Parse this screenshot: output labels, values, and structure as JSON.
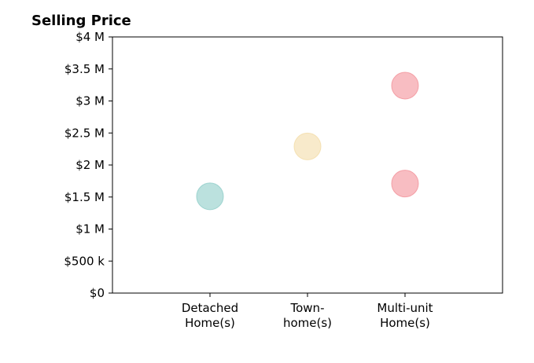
{
  "chart_data": {
    "type": "scatter",
    "title": "Selling Price",
    "xlabel": "",
    "ylabel": "",
    "categories": [
      [
        "Detached",
        "Home(s)"
      ],
      [
        "Town-",
        "home(s)"
      ],
      [
        "Multi-unit",
        "Home(s)"
      ]
    ],
    "x_range": [
      -1,
      3
    ],
    "ylim": [
      0,
      4000000
    ],
    "y_ticks": [
      {
        "value": 0,
        "label": "$0"
      },
      {
        "value": 500000,
        "label": "$500 k"
      },
      {
        "value": 1000000,
        "label": "$1 M"
      },
      {
        "value": 1500000,
        "label": "$1.5 M"
      },
      {
        "value": 2000000,
        "label": "$2 M"
      },
      {
        "value": 2500000,
        "label": "$2.5 M"
      },
      {
        "value": 3000000,
        "label": "$3 M"
      },
      {
        "value": 3500000,
        "label": "$3.5 M"
      },
      {
        "value": 4000000,
        "label": "$4 M"
      }
    ],
    "points": [
      {
        "category": 0,
        "value": 1510000,
        "color": "#8ecdc8"
      },
      {
        "category": 1,
        "value": 2290000,
        "color": "#f3dca8"
      },
      {
        "category": 2,
        "value": 3240000,
        "color": "#f39199"
      },
      {
        "category": 2,
        "value": 1710000,
        "color": "#f39199"
      }
    ],
    "grid": false,
    "legend": "none"
  }
}
